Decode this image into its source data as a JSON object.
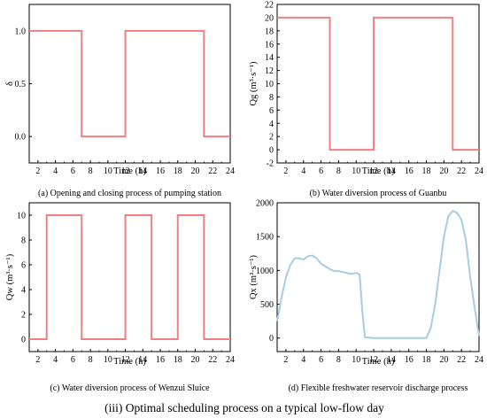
{
  "caption": "(iii) Optimal scheduling process on a typical low-flow day",
  "chart_data": [
    {
      "type": "line",
      "caption": "(a) Opening and closing process of pumping station",
      "xlabel": "Time (h)",
      "ylabel": "δ",
      "xlim": [
        1,
        24
      ],
      "ylim": [
        -0.25,
        1.25
      ],
      "xticks": [
        "2",
        "4",
        "6",
        "8",
        "10",
        "12",
        "14",
        "16",
        "18",
        "20",
        "22",
        "24"
      ],
      "yticks": [
        {
          "v": 0.0,
          "label": "0.0"
        },
        {
          "v": 0.5,
          "label": "0.5"
        },
        {
          "v": 1.0,
          "label": "1.0"
        }
      ],
      "color": "#f08080",
      "series": [
        {
          "x": [
            1,
            7,
            7,
            12,
            12,
            21,
            21,
            24
          ],
          "y": [
            1,
            1,
            0,
            0,
            1,
            1,
            0,
            0
          ]
        }
      ]
    },
    {
      "type": "line",
      "caption": "(b) Water diversion process of Guanbu",
      "xlabel": "Time (h)",
      "ylabel": "Qg (m³·s⁻¹)",
      "xlim": [
        1,
        24
      ],
      "ylim": [
        -2,
        22
      ],
      "xticks": [
        "2",
        "4",
        "6",
        "8",
        "10",
        "12",
        "14",
        "16",
        "18",
        "20",
        "22",
        "24"
      ],
      "yticks": [
        {
          "v": -2,
          "label": "-2"
        },
        {
          "v": 0,
          "label": "0"
        },
        {
          "v": 2,
          "label": "2"
        },
        {
          "v": 4,
          "label": "4"
        },
        {
          "v": 6,
          "label": "6"
        },
        {
          "v": 8,
          "label": "8"
        },
        {
          "v": 10,
          "label": "10"
        },
        {
          "v": 12,
          "label": "12"
        },
        {
          "v": 14,
          "label": "14"
        },
        {
          "v": 16,
          "label": "16"
        },
        {
          "v": 18,
          "label": "18"
        },
        {
          "v": 20,
          "label": "20"
        },
        {
          "v": 22,
          "label": "22"
        }
      ],
      "color": "#f08080",
      "series": [
        {
          "x": [
            1,
            7,
            7,
            12,
            12,
            21,
            21,
            24
          ],
          "y": [
            20,
            20,
            0,
            0,
            20,
            20,
            0,
            0
          ]
        }
      ]
    },
    {
      "type": "line",
      "caption": "(c) Water diversion process of Wenzui Sluice",
      "xlabel": "Time (h)",
      "ylabel": "Qw (m³·s⁻¹)",
      "xlim": [
        1,
        24
      ],
      "ylim": [
        -1,
        11
      ],
      "xticks": [
        "2",
        "4",
        "6",
        "8",
        "10",
        "12",
        "14",
        "16",
        "18",
        "20",
        "22",
        "24"
      ],
      "yticks": [
        {
          "v": 0,
          "label": "0"
        },
        {
          "v": 2,
          "label": "2"
        },
        {
          "v": 4,
          "label": "4"
        },
        {
          "v": 6,
          "label": "6"
        },
        {
          "v": 8,
          "label": "8"
        },
        {
          "v": 10,
          "label": "10"
        }
      ],
      "color": "#f08080",
      "series": [
        {
          "x": [
            1,
            3,
            3,
            7,
            7,
            12,
            12,
            15,
            15,
            18,
            18,
            21,
            21,
            24
          ],
          "y": [
            0,
            0,
            10,
            10,
            0,
            0,
            10,
            10,
            0,
            0,
            10,
            10,
            0,
            0
          ]
        }
      ]
    },
    {
      "type": "line",
      "caption": "(d) Flexible freshwater reservoir discharge process",
      "xlabel": "Time (h)",
      "ylabel": "Qx (m³·s⁻¹)",
      "xlim": [
        1,
        24
      ],
      "ylim": [
        -200,
        2000
      ],
      "xticks": [
        "2",
        "4",
        "6",
        "8",
        "10",
        "12",
        "14",
        "16",
        "18",
        "20",
        "22",
        "24"
      ],
      "yticks": [
        {
          "v": 0,
          "label": "0"
        },
        {
          "v": 500,
          "label": "500"
        },
        {
          "v": 1000,
          "label": "1000"
        },
        {
          "v": 1500,
          "label": "1500"
        },
        {
          "v": 2000,
          "label": "2000"
        }
      ],
      "color": "#a8cce6",
      "series": [
        {
          "x": [
            1,
            1.5,
            2,
            2.5,
            3,
            3.5,
            4,
            4.5,
            5,
            5.5,
            6,
            6.5,
            7,
            7.5,
            8,
            8.5,
            9,
            9.5,
            10,
            10.4,
            10.7,
            11,
            12,
            14,
            16,
            18,
            18.5,
            19,
            19.5,
            20,
            20.5,
            21,
            21.5,
            22,
            22.5,
            23,
            23.5,
            24
          ],
          "y": [
            250,
            600,
            900,
            1080,
            1180,
            1180,
            1160,
            1210,
            1220,
            1180,
            1100,
            1060,
            1020,
            990,
            990,
            975,
            960,
            950,
            965,
            940,
            400,
            10,
            0,
            0,
            0,
            0,
            150,
            500,
            1000,
            1500,
            1800,
            1880,
            1850,
            1750,
            1450,
            900,
            450,
            30
          ]
        }
      ]
    }
  ]
}
